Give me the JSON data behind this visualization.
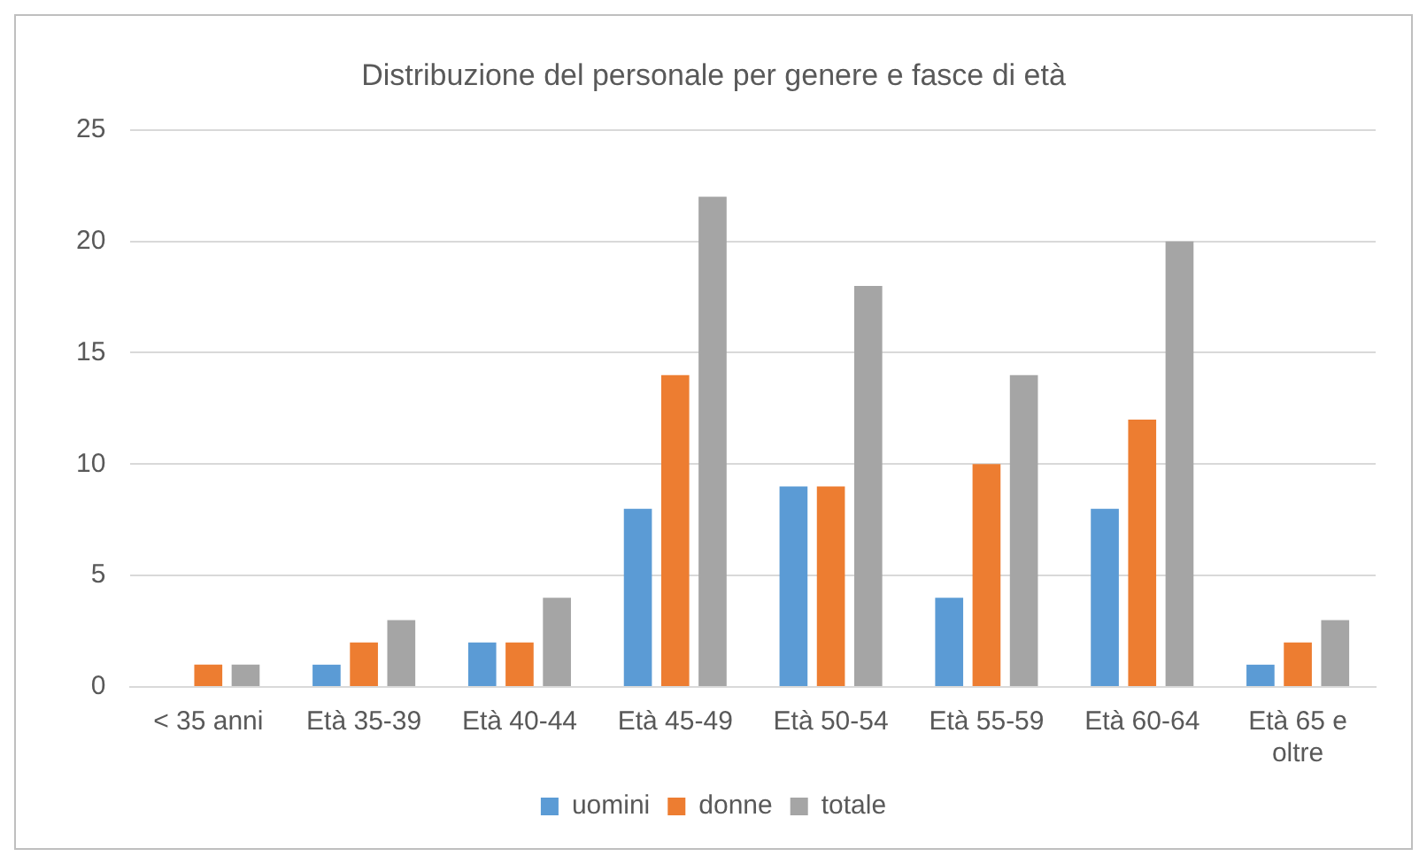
{
  "chart_data": {
    "type": "bar",
    "title": "Distribuzione del personale per genere e fasce di età",
    "categories": [
      "< 35 anni",
      "Età 35-39",
      "Età 40-44",
      "Età 45-49",
      "Età 50-54",
      "Età 55-59",
      "Età 60-64",
      "Età 65 e oltre"
    ],
    "series": [
      {
        "name": "uomini",
        "color": "#5b9bd5",
        "values": [
          0,
          1,
          2,
          8,
          9,
          4,
          8,
          1
        ]
      },
      {
        "name": "donne",
        "color": "#ed7d31",
        "values": [
          1,
          2,
          2,
          14,
          9,
          10,
          12,
          2
        ]
      },
      {
        "name": "totale",
        "color": "#a5a5a5",
        "values": [
          1,
          3,
          4,
          22,
          18,
          14,
          20,
          3
        ]
      }
    ],
    "ylim": [
      0,
      25
    ],
    "yticks": [
      0,
      5,
      10,
      15,
      20,
      25
    ],
    "grid": "y",
    "legend": "bottom"
  }
}
